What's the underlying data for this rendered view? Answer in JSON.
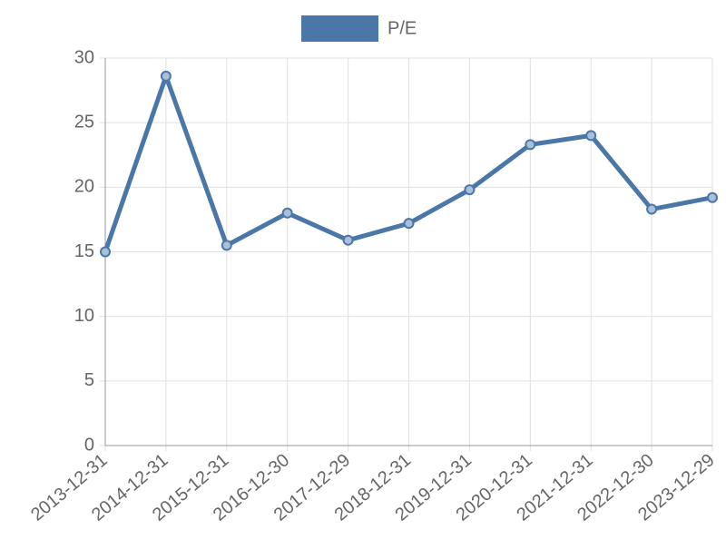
{
  "chart_data": {
    "type": "line",
    "categories": [
      "2013-12-31",
      "2014-12-31",
      "2015-12-31",
      "2016-12-30",
      "2017-12-29",
      "2018-12-31",
      "2019-12-31",
      "2020-12-31",
      "2021-12-31",
      "2022-12-30",
      "2023-12-29"
    ],
    "series": [
      {
        "name": "P/E",
        "color": "#4a76a8",
        "values": [
          15.0,
          28.6,
          15.5,
          18.0,
          15.9,
          17.2,
          19.8,
          23.3,
          24.0,
          18.3,
          19.2
        ]
      }
    ],
    "ylim": [
      0,
      30
    ],
    "yticks": [
      0,
      5,
      10,
      15,
      20,
      25,
      30
    ],
    "grid": true,
    "legend": "top"
  }
}
